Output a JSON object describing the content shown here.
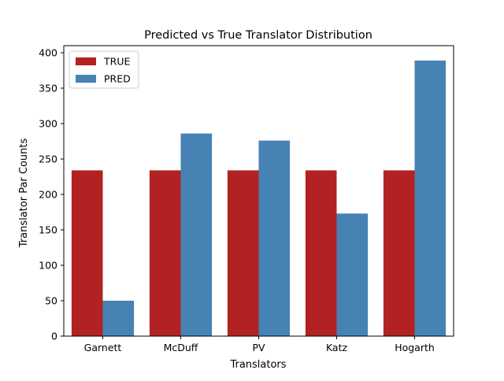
{
  "chart_data": {
    "type": "bar",
    "title": "Predicted vs True Translator Distribution",
    "xlabel": "Translators",
    "ylabel": "Translator Par Counts",
    "categories": [
      "Garnett",
      "McDuff",
      "PV",
      "Katz",
      "Hogarth"
    ],
    "series": [
      {
        "name": "TRUE",
        "values": [
          234,
          234,
          234,
          234,
          234
        ],
        "color": "#b22222"
      },
      {
        "name": "PRED",
        "values": [
          50,
          286,
          276,
          173,
          389
        ],
        "color": "#4682b4"
      }
    ],
    "ylim": [
      0,
      410
    ],
    "yticks": [
      0,
      50,
      100,
      150,
      200,
      250,
      300,
      350,
      400
    ],
    "legend_position": "top-left",
    "grid": false
  }
}
